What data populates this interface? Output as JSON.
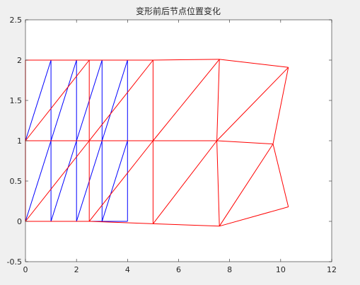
{
  "chart_data": {
    "type": "line",
    "title": "变形前后节点位置变化",
    "xlabel": "",
    "ylabel": "",
    "xlim": [
      0,
      12
    ],
    "ylim": [
      -0.5,
      2.5
    ],
    "xticks": [
      0,
      2,
      4,
      6,
      8,
      10,
      12
    ],
    "yticks": [
      -0.5,
      0,
      0.5,
      1,
      1.5,
      2,
      2.5
    ],
    "xtick_labels": [
      "0",
      "2",
      "4",
      "6",
      "8",
      "10",
      "12"
    ],
    "ytick_labels": [
      "-0.5",
      "0",
      "0.5",
      "1",
      "1.5",
      "2",
      "2.5"
    ],
    "grid": false,
    "legend": "none",
    "series": [
      {
        "color": "#0000ff",
        "edges": [
          [
            [
              0,
              0
            ],
            [
              4,
              0
            ]
          ],
          [
            [
              0,
              1
            ],
            [
              4,
              1
            ]
          ],
          [
            [
              0,
              2
            ],
            [
              4,
              2
            ]
          ],
          [
            [
              0,
              0
            ],
            [
              0,
              2
            ]
          ],
          [
            [
              1,
              0
            ],
            [
              1,
              2
            ]
          ],
          [
            [
              2,
              0
            ],
            [
              2,
              2
            ]
          ],
          [
            [
              3,
              0
            ],
            [
              3,
              2
            ]
          ],
          [
            [
              4,
              0
            ],
            [
              4,
              2
            ]
          ],
          [
            [
              0,
              0
            ],
            [
              1,
              1
            ]
          ],
          [
            [
              1,
              0
            ],
            [
              2,
              1
            ]
          ],
          [
            [
              2,
              0
            ],
            [
              3,
              1
            ]
          ],
          [
            [
              3,
              0
            ],
            [
              4,
              1
            ]
          ],
          [
            [
              0,
              1
            ],
            [
              1,
              2
            ]
          ],
          [
            [
              1,
              1
            ],
            [
              2,
              2
            ]
          ],
          [
            [
              2,
              1
            ],
            [
              3,
              2
            ]
          ],
          [
            [
              3,
              1
            ],
            [
              4,
              2
            ]
          ]
        ]
      },
      {
        "color": "#ff0000",
        "edges": [
          [
            [
              0,
              0
            ],
            [
              2.5,
              0
            ]
          ],
          [
            [
              2.5,
              0
            ],
            [
              5,
              -0.03
            ]
          ],
          [
            [
              5,
              -0.03
            ],
            [
              7.6,
              -0.06
            ]
          ],
          [
            [
              7.6,
              -0.06
            ],
            [
              10.3,
              0.18
            ]
          ],
          [
            [
              0,
              1
            ],
            [
              2.5,
              1
            ]
          ],
          [
            [
              2.5,
              1
            ],
            [
              5,
              1
            ]
          ],
          [
            [
              5,
              1
            ],
            [
              7.5,
              1
            ]
          ],
          [
            [
              7.5,
              1
            ],
            [
              9.7,
              0.96
            ]
          ],
          [
            [
              0,
              2
            ],
            [
              2.5,
              2
            ]
          ],
          [
            [
              2.5,
              2
            ],
            [
              5,
              2
            ]
          ],
          [
            [
              5,
              2
            ],
            [
              7.6,
              2.01
            ]
          ],
          [
            [
              7.6,
              2.01
            ],
            [
              10.3,
              1.91
            ]
          ],
          [
            [
              0,
              0
            ],
            [
              0,
              1
            ]
          ],
          [
            [
              0,
              1
            ],
            [
              0,
              2
            ]
          ],
          [
            [
              2.5,
              0
            ],
            [
              2.5,
              1
            ]
          ],
          [
            [
              2.5,
              1
            ],
            [
              2.5,
              2
            ]
          ],
          [
            [
              5,
              -0.03
            ],
            [
              5,
              1
            ]
          ],
          [
            [
              5,
              1
            ],
            [
              5,
              2
            ]
          ],
          [
            [
              7.6,
              -0.06
            ],
            [
              7.5,
              1
            ]
          ],
          [
            [
              7.5,
              1
            ],
            [
              7.6,
              2.01
            ]
          ],
          [
            [
              10.3,
              0.18
            ],
            [
              9.7,
              0.96
            ]
          ],
          [
            [
              9.7,
              0.96
            ],
            [
              10.3,
              1.91
            ]
          ],
          [
            [
              0,
              0
            ],
            [
              2.5,
              1
            ]
          ],
          [
            [
              2.5,
              0
            ],
            [
              5,
              1
            ]
          ],
          [
            [
              5,
              -0.03
            ],
            [
              7.5,
              1
            ]
          ],
          [
            [
              7.6,
              -0.06
            ],
            [
              9.7,
              0.96
            ]
          ],
          [
            [
              0,
              1
            ],
            [
              2.5,
              2
            ]
          ],
          [
            [
              2.5,
              1
            ],
            [
              5,
              2
            ]
          ],
          [
            [
              5,
              1
            ],
            [
              7.6,
              2.01
            ]
          ],
          [
            [
              7.5,
              1
            ],
            [
              10.3,
              1.91
            ]
          ]
        ]
      }
    ]
  }
}
